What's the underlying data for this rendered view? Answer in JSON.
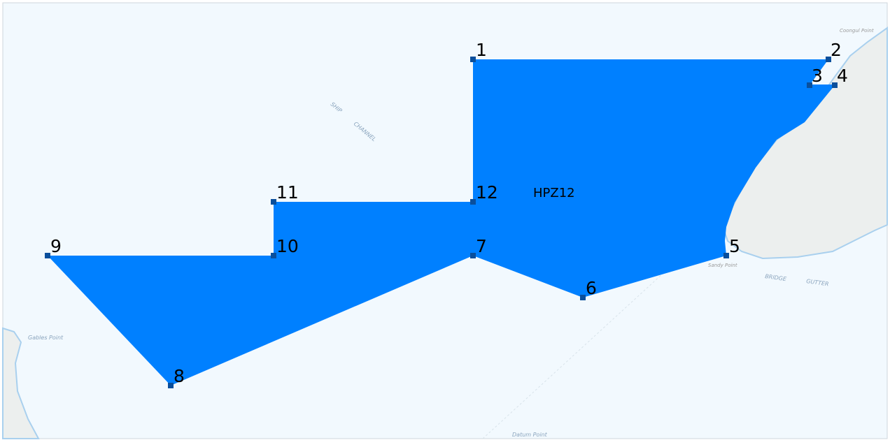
{
  "map": {
    "zone_label": "HPZ12",
    "vertices": [
      "1",
      "2",
      "3",
      "4",
      "5",
      "6",
      "7",
      "8",
      "9",
      "10",
      "11",
      "12"
    ],
    "places": [
      "Coongul Point",
      "SHIP",
      "CHANNEL",
      "Sandy Point",
      "BRIDGE",
      "GUTTER",
      "Datum Point",
      "Gables Point"
    ]
  }
}
